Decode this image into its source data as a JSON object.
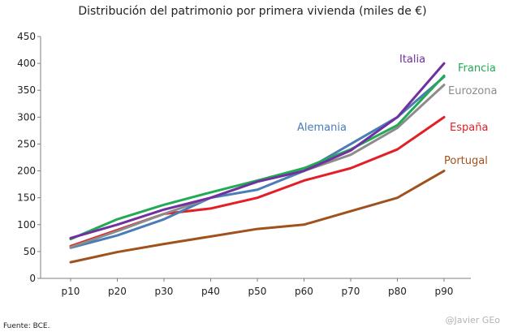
{
  "chart_data": {
    "type": "line",
    "title": "Distribución del patrimonio por primera vivienda (miles de €)",
    "xlabel": "",
    "ylabel": "",
    "categories": [
      "p10",
      "p20",
      "p30",
      "p40",
      "p50",
      "p60",
      "p70",
      "p80",
      "p90"
    ],
    "ylim": [
      0,
      450
    ],
    "yticks": [
      0,
      50,
      100,
      150,
      200,
      250,
      300,
      350,
      400,
      450
    ],
    "grid": false,
    "series": [
      {
        "name": "Portugal",
        "color": "#a0521e",
        "values": [
          30,
          49,
          64,
          78,
          92,
          100,
          125,
          150,
          200
        ]
      },
      {
        "name": "España",
        "color": "#e31e24",
        "values": [
          60,
          90,
          120,
          130,
          150,
          182,
          205,
          240,
          300
        ]
      },
      {
        "name": "Alemania",
        "color": "#4a7db5",
        "values": [
          57,
          80,
          110,
          150,
          165,
          200,
          250,
          300,
          375
        ]
      },
      {
        "name": "Eurozona",
        "color": "#8c8c8c",
        "values": [
          58,
          88,
          120,
          150,
          180,
          200,
          230,
          280,
          360
        ]
      },
      {
        "name": "Francia",
        "color": "#22aa55",
        "values": [
          73,
          110,
          137,
          160,
          182,
          205,
          240,
          285,
          377
        ]
      },
      {
        "name": "Italia",
        "color": "#7030a0",
        "values": [
          75,
          100,
          128,
          150,
          180,
          200,
          238,
          300,
          400
        ]
      }
    ],
    "source": "Fuente: BCE.",
    "credit": "@Javier GEo"
  }
}
